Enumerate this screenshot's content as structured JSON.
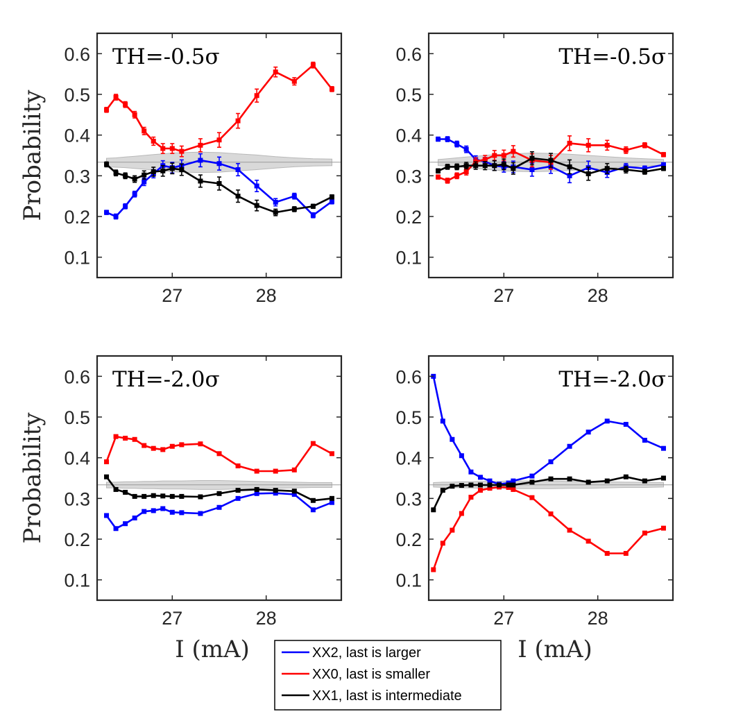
{
  "chart_data": [
    {
      "type": "line",
      "id": "top-left",
      "annotation": "TH=-0.5σ",
      "annotation_align": "left",
      "ylabel": "Probability",
      "xlabel": "",
      "xlim": [
        26.2,
        28.8
      ],
      "ylim": [
        0.05,
        0.65
      ],
      "xticks": [
        27,
        28
      ],
      "yticks": [
        0.1,
        0.2,
        0.3,
        0.4,
        0.5,
        0.6
      ],
      "x": [
        26.3,
        26.4,
        26.5,
        26.6,
        26.7,
        26.8,
        26.9,
        27.0,
        27.1,
        27.3,
        27.5,
        27.7,
        27.9,
        28.1,
        28.3,
        28.5,
        28.7
      ],
      "band": {
        "lower": [
          0.322,
          0.321,
          0.32,
          0.318,
          0.316,
          0.314,
          0.312,
          0.31,
          0.309,
          0.308,
          0.309,
          0.312,
          0.315,
          0.319,
          0.322,
          0.324,
          0.325
        ],
        "upper": [
          0.343,
          0.344,
          0.346,
          0.348,
          0.35,
          0.352,
          0.354,
          0.356,
          0.357,
          0.358,
          0.357,
          0.354,
          0.351,
          0.347,
          0.344,
          0.342,
          0.341
        ]
      },
      "series": [
        {
          "name": "XX2",
          "color": "#0000ff",
          "values": [
            0.21,
            0.2,
            0.225,
            0.255,
            0.285,
            0.305,
            0.325,
            0.32,
            0.325,
            0.338,
            0.33,
            0.315,
            0.275,
            0.235,
            0.25,
            0.203,
            0.237
          ],
          "err": [
            0.005,
            0.006,
            0.006,
            0.007,
            0.009,
            0.01,
            0.012,
            0.013,
            0.014,
            0.016,
            0.016,
            0.015,
            0.014,
            0.009,
            0.007,
            0.006,
            0.006
          ]
        },
        {
          "name": "XX0",
          "color": "#ff0000",
          "values": [
            0.462,
            0.493,
            0.475,
            0.45,
            0.41,
            0.385,
            0.367,
            0.367,
            0.36,
            0.375,
            0.388,
            0.435,
            0.497,
            0.555,
            0.532,
            0.572,
            0.513
          ],
          "err": [
            0.006,
            0.007,
            0.007,
            0.008,
            0.009,
            0.01,
            0.012,
            0.012,
            0.013,
            0.016,
            0.018,
            0.018,
            0.016,
            0.012,
            0.009,
            0.007,
            0.006
          ]
        },
        {
          "name": "XX1",
          "color": "#000000",
          "values": [
            0.328,
            0.307,
            0.3,
            0.292,
            0.302,
            0.31,
            0.312,
            0.318,
            0.315,
            0.287,
            0.281,
            0.25,
            0.227,
            0.21,
            0.218,
            0.225,
            0.248
          ],
          "err": [
            0.006,
            0.007,
            0.007,
            0.008,
            0.01,
            0.011,
            0.013,
            0.013,
            0.014,
            0.015,
            0.016,
            0.015,
            0.013,
            0.008,
            0.006,
            0.005,
            0.005
          ]
        }
      ]
    },
    {
      "type": "line",
      "id": "top-right",
      "annotation": "TH=-0.5σ",
      "annotation_align": "right",
      "ylabel": "",
      "xlabel": "",
      "xlim": [
        26.2,
        28.8
      ],
      "ylim": [
        0.05,
        0.65
      ],
      "xticks": [
        27,
        28
      ],
      "yticks": [
        0.1,
        0.2,
        0.3,
        0.4,
        0.5,
        0.6
      ],
      "x": [
        26.3,
        26.4,
        26.5,
        26.6,
        26.7,
        26.8,
        26.9,
        27.0,
        27.1,
        27.3,
        27.5,
        27.7,
        27.9,
        28.1,
        28.3,
        28.5,
        28.7
      ],
      "band": {
        "lower": [
          0.325,
          0.324,
          0.322,
          0.32,
          0.318,
          0.316,
          0.314,
          0.312,
          0.311,
          0.31,
          0.311,
          0.313,
          0.316,
          0.319,
          0.322,
          0.324,
          0.326
        ],
        "upper": [
          0.34,
          0.342,
          0.344,
          0.346,
          0.348,
          0.35,
          0.352,
          0.353,
          0.354,
          0.356,
          0.355,
          0.353,
          0.35,
          0.347,
          0.344,
          0.342,
          0.34
        ]
      },
      "series": [
        {
          "name": "XX2",
          "color": "#0000ff",
          "values": [
            0.39,
            0.39,
            0.378,
            0.365,
            0.34,
            0.335,
            0.325,
            0.322,
            0.322,
            0.315,
            0.323,
            0.3,
            0.32,
            0.308,
            0.322,
            0.318,
            0.327
          ],
          "err": [
            0.005,
            0.006,
            0.007,
            0.008,
            0.009,
            0.01,
            0.012,
            0.013,
            0.014,
            0.016,
            0.017,
            0.017,
            0.016,
            0.012,
            0.008,
            0.006,
            0.005
          ]
        },
        {
          "name": "XX0",
          "color": "#ff0000",
          "values": [
            0.297,
            0.288,
            0.3,
            0.31,
            0.335,
            0.34,
            0.35,
            0.35,
            0.36,
            0.338,
            0.333,
            0.38,
            0.375,
            0.375,
            0.363,
            0.375,
            0.352
          ],
          "err": [
            0.005,
            0.006,
            0.007,
            0.008,
            0.009,
            0.01,
            0.012,
            0.013,
            0.014,
            0.016,
            0.017,
            0.018,
            0.016,
            0.012,
            0.008,
            0.006,
            0.005
          ]
        },
        {
          "name": "XX1",
          "color": "#000000",
          "values": [
            0.312,
            0.322,
            0.322,
            0.325,
            0.325,
            0.325,
            0.325,
            0.328,
            0.318,
            0.343,
            0.338,
            0.322,
            0.305,
            0.318,
            0.315,
            0.31,
            0.318
          ],
          "err": [
            0.005,
            0.006,
            0.007,
            0.008,
            0.009,
            0.01,
            0.012,
            0.013,
            0.014,
            0.016,
            0.017,
            0.017,
            0.016,
            0.012,
            0.008,
            0.006,
            0.005
          ]
        }
      ]
    },
    {
      "type": "line",
      "id": "bottom-left",
      "annotation": "TH=-2.0σ",
      "annotation_align": "left",
      "ylabel": "Probability",
      "xlabel": "I (mA)",
      "xlim": [
        26.2,
        28.8
      ],
      "ylim": [
        0.05,
        0.65
      ],
      "xticks": [
        27,
        28
      ],
      "yticks": [
        0.1,
        0.2,
        0.3,
        0.4,
        0.5,
        0.6
      ],
      "x": [
        26.3,
        26.4,
        26.5,
        26.6,
        26.7,
        26.8,
        26.9,
        27.0,
        27.1,
        27.3,
        27.5,
        27.7,
        27.9,
        28.1,
        28.3,
        28.5,
        28.7
      ],
      "band": {
        "lower": [
          0.326,
          0.326,
          0.325,
          0.325,
          0.324,
          0.324,
          0.323,
          0.323,
          0.323,
          0.322,
          0.322,
          0.323,
          0.324,
          0.325,
          0.326,
          0.327,
          0.327
        ],
        "upper": [
          0.34,
          0.34,
          0.341,
          0.341,
          0.342,
          0.342,
          0.343,
          0.343,
          0.343,
          0.344,
          0.344,
          0.343,
          0.342,
          0.341,
          0.34,
          0.339,
          0.339
        ]
      },
      "series": [
        {
          "name": "XX2",
          "color": "#0000ff",
          "values": [
            0.258,
            0.226,
            0.238,
            0.252,
            0.268,
            0.27,
            0.275,
            0.266,
            0.265,
            0.263,
            0.278,
            0.3,
            0.312,
            0.313,
            0.31,
            0.272,
            0.29
          ]
        },
        {
          "name": "XX0",
          "color": "#ff0000",
          "values": [
            0.39,
            0.452,
            0.448,
            0.445,
            0.43,
            0.423,
            0.42,
            0.428,
            0.432,
            0.434,
            0.41,
            0.38,
            0.367,
            0.367,
            0.37,
            0.435,
            0.41
          ]
        },
        {
          "name": "XX1",
          "color": "#000000",
          "values": [
            0.353,
            0.322,
            0.315,
            0.305,
            0.305,
            0.307,
            0.306,
            0.305,
            0.305,
            0.304,
            0.312,
            0.32,
            0.322,
            0.32,
            0.318,
            0.295,
            0.3
          ]
        }
      ]
    },
    {
      "type": "line",
      "id": "bottom-right",
      "annotation": "TH=-2.0σ",
      "annotation_align": "right",
      "ylabel": "",
      "xlabel": "I (mA)",
      "xlim": [
        26.2,
        28.8
      ],
      "ylim": [
        0.05,
        0.65
      ],
      "xticks": [
        27,
        28
      ],
      "yticks": [
        0.1,
        0.2,
        0.3,
        0.4,
        0.5,
        0.6
      ],
      "x": [
        26.25,
        26.35,
        26.45,
        26.55,
        26.65,
        26.75,
        26.85,
        26.95,
        27.05,
        27.1,
        27.3,
        27.5,
        27.7,
        27.9,
        28.1,
        28.3,
        28.5,
        28.7
      ],
      "band": {
        "lower": [
          0.328,
          0.327,
          0.327,
          0.326,
          0.326,
          0.325,
          0.325,
          0.325,
          0.324,
          0.324,
          0.324,
          0.324,
          0.325,
          0.325,
          0.326,
          0.327,
          0.327,
          0.328
        ],
        "upper": [
          0.339,
          0.34,
          0.34,
          0.341,
          0.341,
          0.342,
          0.342,
          0.342,
          0.343,
          0.343,
          0.343,
          0.343,
          0.342,
          0.342,
          0.341,
          0.34,
          0.34,
          0.339
        ]
      },
      "series": [
        {
          "name": "XX2",
          "color": "#0000ff",
          "values": [
            0.6,
            0.49,
            0.445,
            0.405,
            0.365,
            0.352,
            0.343,
            0.335,
            0.338,
            0.343,
            0.355,
            0.39,
            0.428,
            0.463,
            0.49,
            0.482,
            0.443,
            0.423
          ]
        },
        {
          "name": "XX0",
          "color": "#ff0000",
          "values": [
            0.125,
            0.19,
            0.222,
            0.263,
            0.303,
            0.32,
            0.325,
            0.328,
            0.327,
            0.322,
            0.302,
            0.262,
            0.222,
            0.195,
            0.165,
            0.165,
            0.215,
            0.227
          ]
        },
        {
          "name": "XX1",
          "color": "#000000",
          "values": [
            0.272,
            0.32,
            0.33,
            0.332,
            0.333,
            0.333,
            0.333,
            0.333,
            0.333,
            0.333,
            0.34,
            0.348,
            0.348,
            0.34,
            0.343,
            0.353,
            0.343,
            0.35
          ]
        }
      ]
    }
  ],
  "legend": {
    "placement": "bottom-center",
    "entries": [
      {
        "label": "XX2, last is larger",
        "color": "#0000ff"
      },
      {
        "label": "XX0, last is smaller",
        "color": "#ff0000"
      },
      {
        "label": "XX1, last is intermediate",
        "color": "#000000"
      }
    ]
  }
}
